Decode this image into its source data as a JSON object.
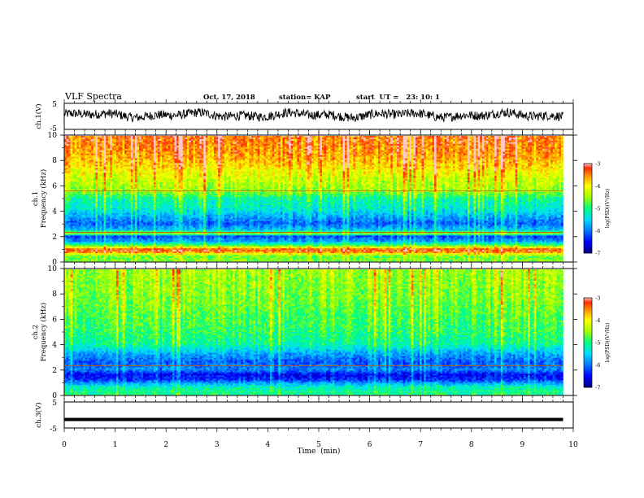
{
  "header": {
    "title": "VLF Spectra",
    "date": "Oct. 17, 2018",
    "station": "station= KAP",
    "start": "start  UT =   23: 10: 1"
  },
  "colors": {
    "trace": "#000000",
    "colormap": [
      "#000080",
      "#0000ff",
      "#00b0ff",
      "#00ff80",
      "#c8ff00",
      "#ffff00",
      "#ffa000",
      "#ff2000",
      "#ffffff"
    ]
  },
  "chart_data": [
    {
      "type": "line",
      "panel": "ch1-waveform",
      "ylabel": "ch.1(V)",
      "yticks": [
        "5",
        "-5"
      ],
      "ylim": [
        -5,
        5
      ],
      "xlim": [
        0,
        10
      ],
      "description_values": {
        "mean_level_V": 0.5,
        "amplitude_V": 1.8
      }
    },
    {
      "type": "heatmap",
      "panel": "ch1-spectrogram",
      "ylabel": "ch.1\nFrequency (kHz)",
      "yticks": [
        "10",
        "8",
        "6",
        "4",
        "2",
        "0"
      ],
      "ylim": [
        0,
        10
      ],
      "xlim": [
        0,
        9.8
      ],
      "colorbar": {
        "label": "log(PSD)(V²/Hz)",
        "ticks": [
          "-3",
          "-4",
          "-5",
          "-6",
          "-7"
        ],
        "range": [
          -7,
          -3
        ]
      },
      "profile": [
        {
          "f_kHz": 0.0,
          "logpsd": -4.6
        },
        {
          "f_kHz": 0.4,
          "logpsd": -4.7
        },
        {
          "f_kHz": 0.8,
          "logpsd": -3.3
        },
        {
          "f_kHz": 1.0,
          "logpsd": -3.5
        },
        {
          "f_kHz": 1.2,
          "logpsd": -4.6
        },
        {
          "f_kHz": 1.6,
          "logpsd": -5.8
        },
        {
          "f_kHz": 2.0,
          "logpsd": -6.2
        },
        {
          "f_kHz": 2.2,
          "logpsd": -4.3
        },
        {
          "f_kHz": 2.5,
          "logpsd": -5.6
        },
        {
          "f_kHz": 3.0,
          "logpsd": -6.1
        },
        {
          "f_kHz": 3.6,
          "logpsd": -5.7
        },
        {
          "f_kHz": 4.2,
          "logpsd": -5.3
        },
        {
          "f_kHz": 5.0,
          "logpsd": -5.1
        },
        {
          "f_kHz": 5.6,
          "logpsd": -4.5
        },
        {
          "f_kHz": 6.5,
          "logpsd": -4.3
        },
        {
          "f_kHz": 7.5,
          "logpsd": -3.9
        },
        {
          "f_kHz": 8.5,
          "logpsd": -3.6
        },
        {
          "f_kHz": 10.0,
          "logpsd": -3.4
        }
      ]
    },
    {
      "type": "heatmap",
      "panel": "ch2-spectrogram",
      "ylabel": "ch.2\nFrequency (kHz)",
      "yticks": [
        "10",
        "8",
        "6",
        "4",
        "2",
        "0"
      ],
      "ylim": [
        0,
        10
      ],
      "xlim": [
        0,
        9.8
      ],
      "colorbar": {
        "label": "log(PSD)(V²/Hz)",
        "ticks": [
          "-3",
          "-4",
          "-5",
          "-6",
          "-7"
        ],
        "range": [
          -7,
          -3
        ]
      },
      "profile": [
        {
          "f_kHz": 0.0,
          "logpsd": -5.0
        },
        {
          "f_kHz": 0.6,
          "logpsd": -5.2
        },
        {
          "f_kHz": 1.2,
          "logpsd": -6.3
        },
        {
          "f_kHz": 1.6,
          "logpsd": -6.5
        },
        {
          "f_kHz": 2.0,
          "logpsd": -5.9
        },
        {
          "f_kHz": 2.6,
          "logpsd": -6.1
        },
        {
          "f_kHz": 3.2,
          "logpsd": -5.8
        },
        {
          "f_kHz": 4.0,
          "logpsd": -5.1
        },
        {
          "f_kHz": 5.0,
          "logpsd": -4.9
        },
        {
          "f_kHz": 6.0,
          "logpsd": -4.8
        },
        {
          "f_kHz": 7.5,
          "logpsd": -4.6
        },
        {
          "f_kHz": 9.0,
          "logpsd": -4.5
        },
        {
          "f_kHz": 10.0,
          "logpsd": -4.4
        }
      ]
    },
    {
      "type": "line",
      "panel": "ch3-waveform",
      "ylabel": "ch.3(V)",
      "yticks": [
        "5",
        "-5"
      ],
      "ylim": [
        -5,
        5
      ],
      "xlim": [
        0,
        10
      ],
      "constant_value_V": -1.7
    }
  ],
  "xaxis": {
    "label": "Time  (min)",
    "ticks": [
      "0",
      "1",
      "2",
      "3",
      "4",
      "5",
      "6",
      "7",
      "8",
      "9",
      "10"
    ]
  }
}
